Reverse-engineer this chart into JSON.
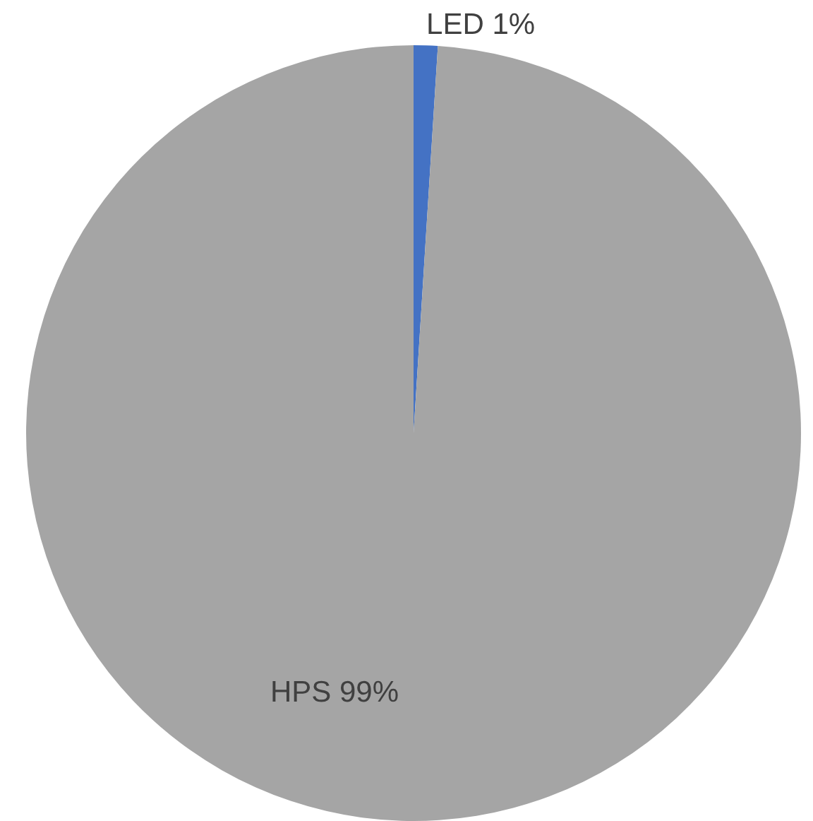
{
  "chart_data": {
    "type": "pie",
    "categories": [
      "LED",
      "HPS"
    ],
    "values": [
      1,
      99
    ],
    "colors": [
      "#4472c4",
      "#a5a5a5"
    ],
    "value_labels": [
      "1%",
      "99%"
    ],
    "legend": false
  }
}
